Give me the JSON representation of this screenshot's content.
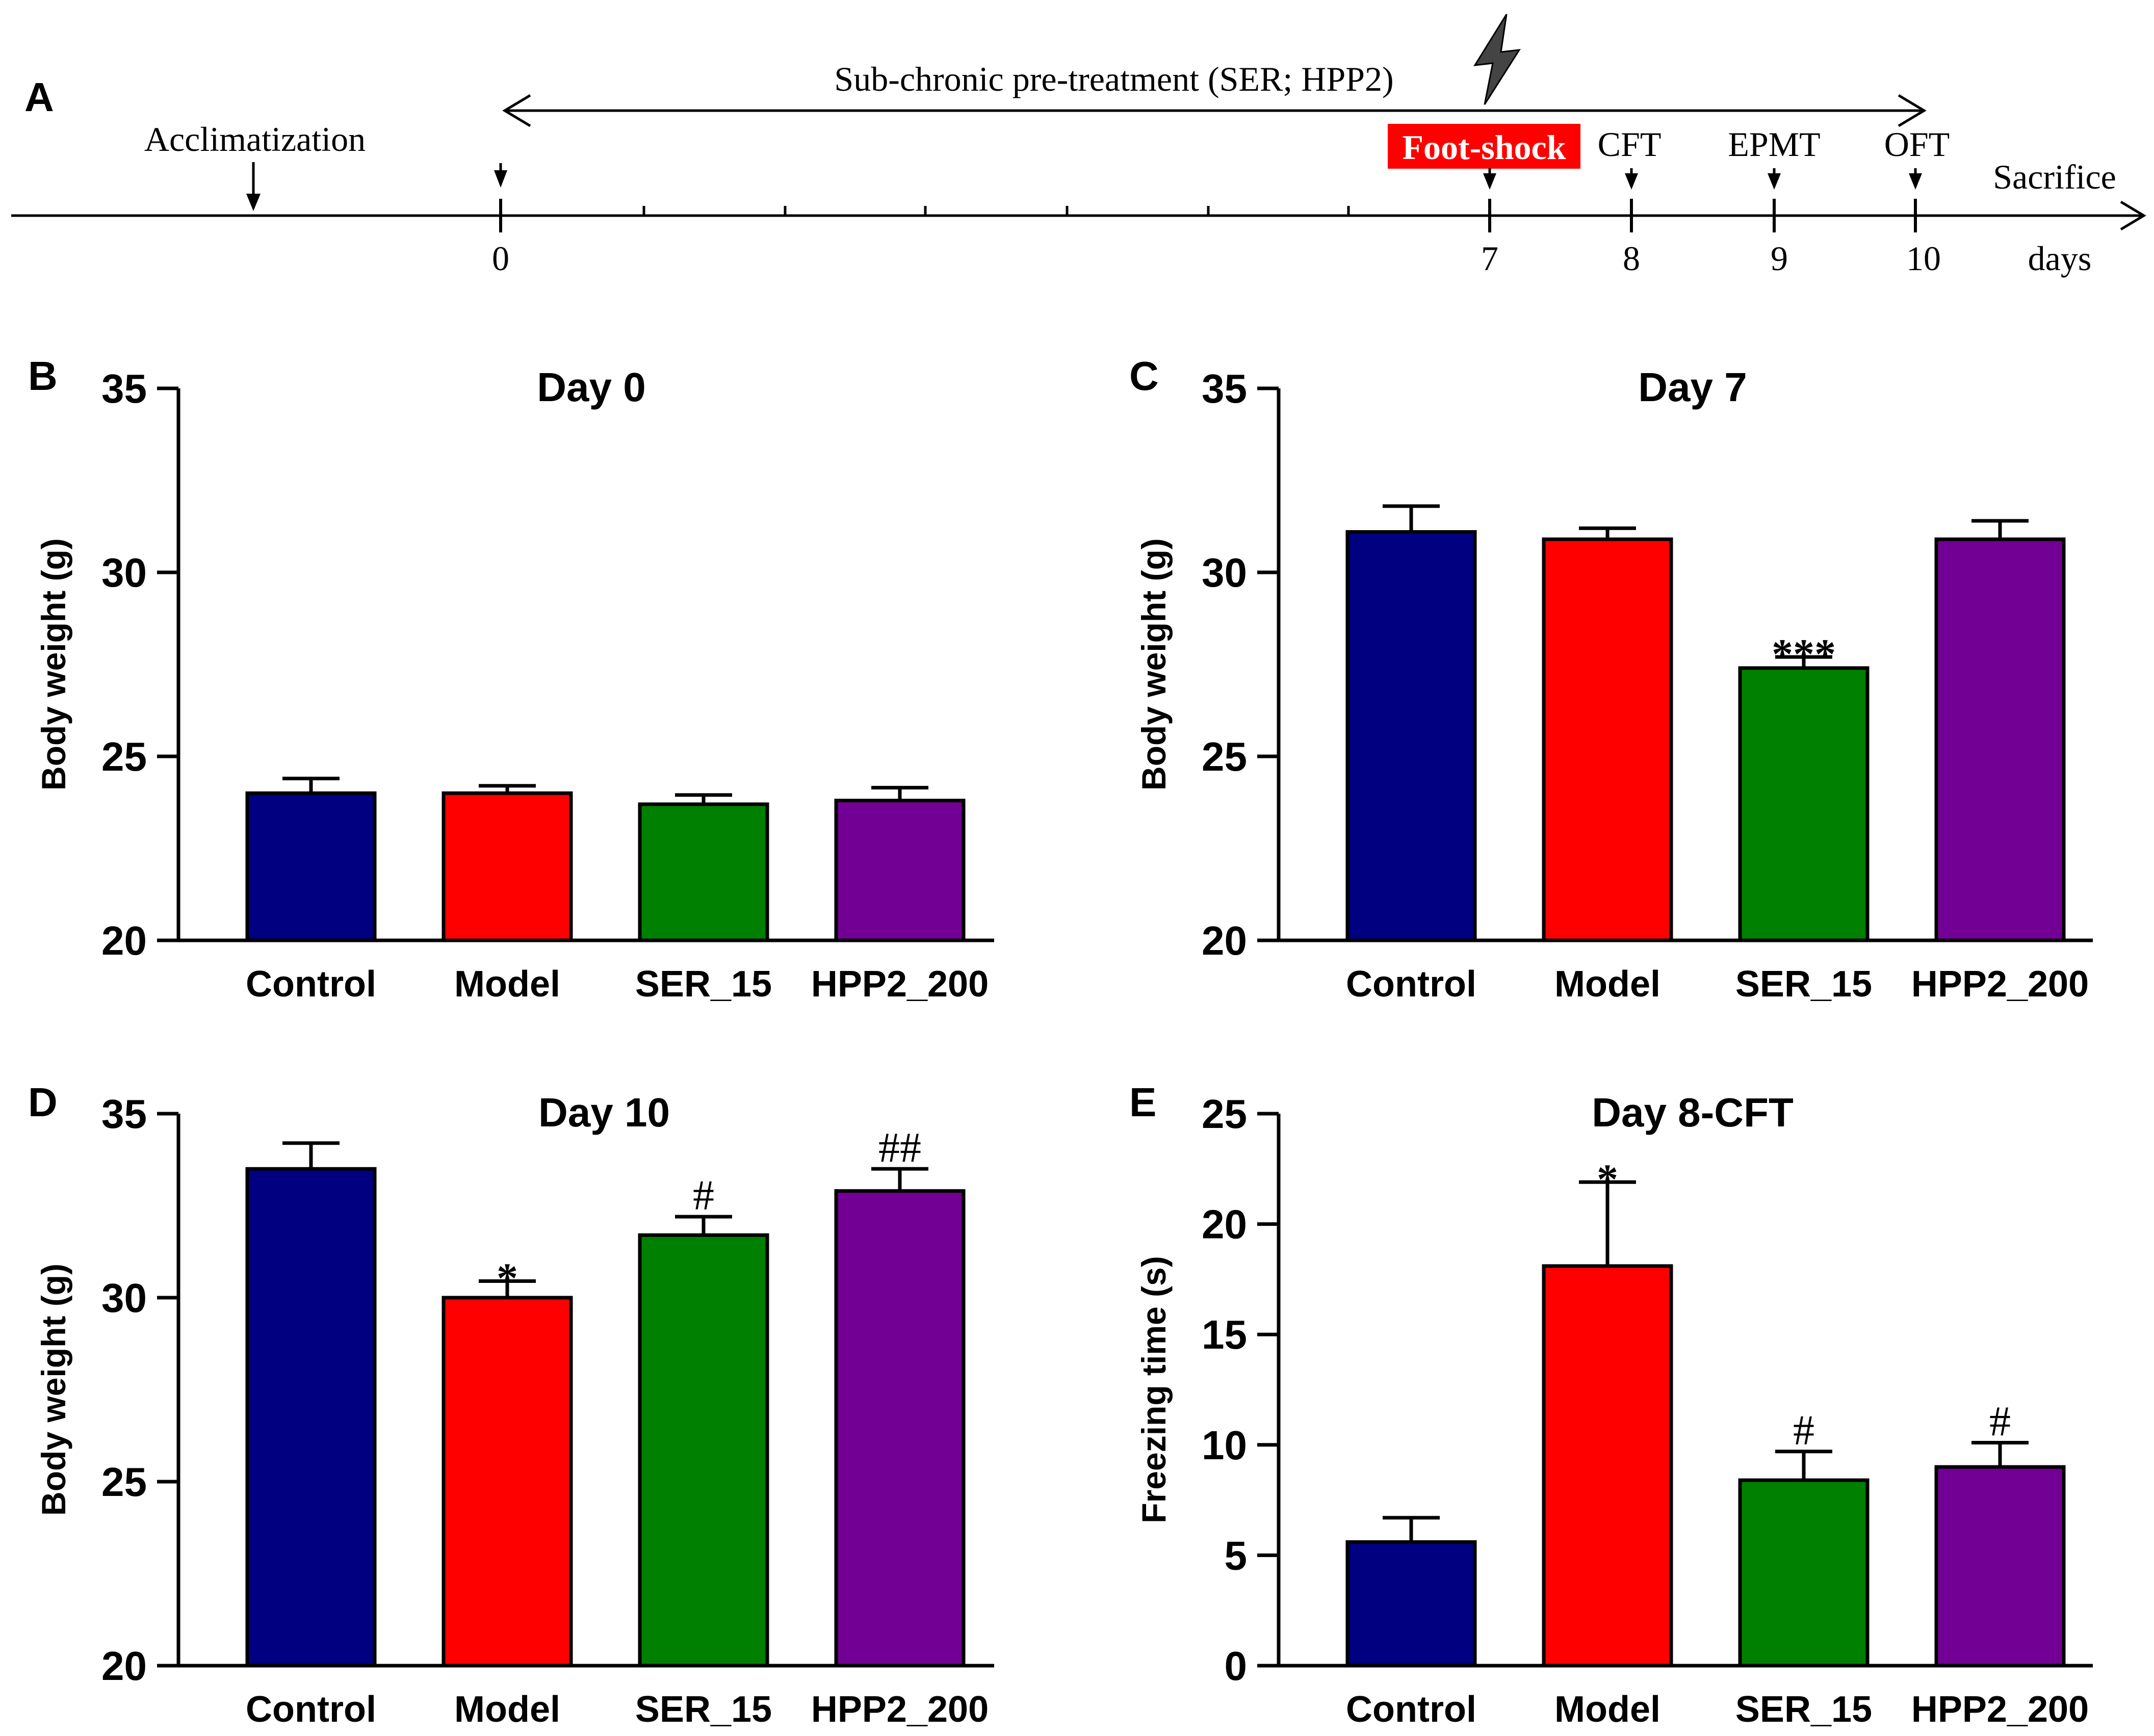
{
  "colors": {
    "Control": "#000080",
    "Model": "#ff0000",
    "SER_15": "#008000",
    "HPP2_200": "#730094",
    "highlight": "#ff0000"
  },
  "timeline": {
    "panel_letter": "A",
    "treatment_label": "Sub-chronic pre-treatment (SER; HPP2)",
    "acclimatization_label": "Acclimatization",
    "footshock_label": "Foot-shock",
    "events": [
      "CFT",
      "EPMT",
      "OFT",
      "Sacrifice"
    ],
    "day_ticks": [
      "0",
      "7",
      "8",
      "9",
      "10"
    ],
    "unit_label": "days",
    "lightning_icon": "lightning-bolt-icon"
  },
  "chart_data": [
    {
      "panel": "B",
      "type": "bar",
      "title": "Day 0",
      "xlabel": "",
      "ylabel": "Body weight (g)",
      "categories": [
        "Control",
        "Model",
        "SER_15",
        "HPP2_200"
      ],
      "values": [
        24.0,
        24.0,
        23.7,
        23.8
      ],
      "errors": [
        0.4,
        0.2,
        0.25,
        0.35
      ],
      "annotations": [
        "",
        "",
        "",
        ""
      ],
      "ylim": [
        20,
        35
      ],
      "yticks": [
        "20",
        "25",
        "30",
        "35"
      ]
    },
    {
      "panel": "C",
      "type": "bar",
      "title": "Day 7",
      "xlabel": "",
      "ylabel": "Body weight (g)",
      "categories": [
        "Control",
        "Model",
        "SER_15",
        "HPP2_200"
      ],
      "values": [
        31.1,
        30.9,
        27.4,
        30.9
      ],
      "errors": [
        0.7,
        0.3,
        0.3,
        0.5
      ],
      "annotations": [
        "",
        "",
        "***",
        ""
      ],
      "ylim": [
        20,
        35
      ],
      "yticks": [
        "20",
        "25",
        "30",
        "35"
      ]
    },
    {
      "panel": "D",
      "type": "bar",
      "title": "Day 10",
      "xlabel": "",
      "ylabel": "Body weight (g)",
      "categories": [
        "Control",
        "Model",
        "SER_15",
        "HPP2_200"
      ],
      "values": [
        33.5,
        30.0,
        31.7,
        32.9
      ],
      "errors": [
        0.7,
        0.45,
        0.5,
        0.6
      ],
      "annotations": [
        "",
        "*",
        "#",
        "##"
      ],
      "ylim": [
        20,
        35
      ],
      "yticks": [
        "20",
        "25",
        "30",
        "35"
      ]
    },
    {
      "panel": "E",
      "type": "bar",
      "title": "Day 8-CFT",
      "xlabel": "",
      "ylabel": "Freezing time (s)",
      "categories": [
        "Control",
        "Model",
        "SER_15",
        "HPP2_200"
      ],
      "values": [
        5.6,
        18.1,
        8.4,
        9.0
      ],
      "errors": [
        1.1,
        3.8,
        1.3,
        1.1
      ],
      "annotations": [
        "",
        "*",
        "#",
        "#"
      ],
      "ylim": [
        0,
        25
      ],
      "yticks": [
        "0",
        "5",
        "10",
        "15",
        "20",
        "25"
      ]
    }
  ]
}
